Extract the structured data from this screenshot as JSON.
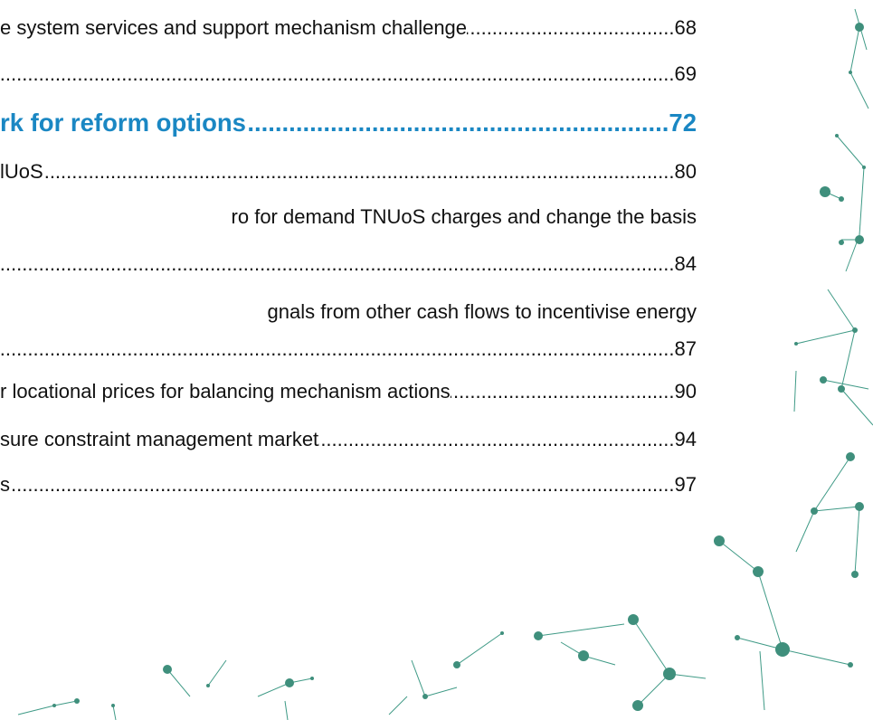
{
  "toc": {
    "rows": [
      {
        "text": "e system services and support mechanism challenge",
        "page": "68"
      },
      {
        "page": "69"
      },
      {
        "text": "rk for reform options",
        "page": "72",
        "heading": true
      },
      {
        "text": "lUoS",
        "page": "80"
      },
      {
        "text": "ro for demand TNUoS charges and change the basis"
      },
      {
        "page": "84"
      },
      {
        "text": "gnals from other cash flows to incentivise energy"
      },
      {
        "page": "87"
      },
      {
        "text": "r locational prices for balancing mechanism actions",
        "page": "90"
      },
      {
        "text": "sure constraint management market",
        "page": "94"
      },
      {
        "text": "s",
        "page": "97"
      }
    ]
  }
}
